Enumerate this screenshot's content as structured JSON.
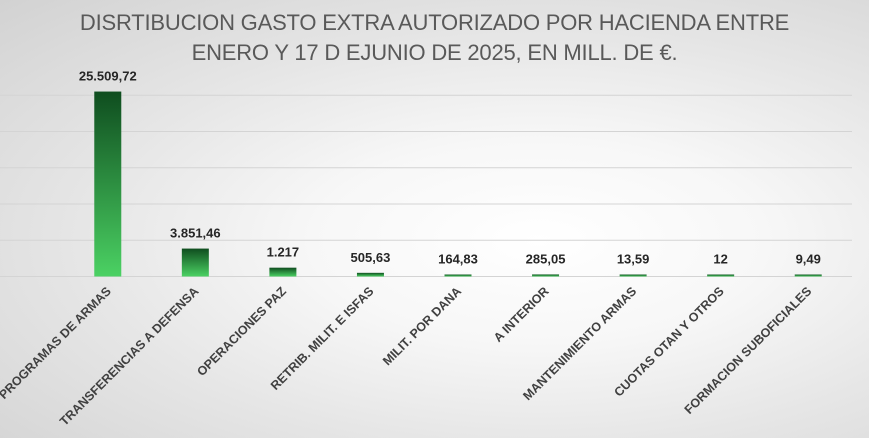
{
  "chart_data": {
    "type": "bar",
    "title": {
      "line1": "DISRTIBUCION GASTO EXTRA AUTORIZADO POR HACIENDA ENTRE",
      "line2": "ENERO Y 17 D EJUNIO DE 2025, EN MILL. DE €."
    },
    "xlabel": "",
    "ylabel": "",
    "ylim": [
      0,
      26000
    ],
    "grid": true,
    "legend": "none",
    "categories": [
      "PROGRAMAS DE ARMAS",
      "TRANSFERENCIAS A DEFENSA",
      "OPERACIONES PAZ",
      "RETRIB. MILIT. E ISFAS",
      "MILIT. POR DANA",
      "A INTERIOR",
      "MANTENIMIENTO ARMAS",
      "CUOTAS OTAN Y OTROS",
      "FORMACION SUBOFICIALES"
    ],
    "values": [
      25509.72,
      3851.46,
      1217,
      505.63,
      164.83,
      285.05,
      13.59,
      12,
      9.49
    ],
    "data_labels": [
      "25.509,72",
      "3.851,46",
      "1.217",
      "505,63",
      "164,83",
      "285,05",
      "13,59",
      "12",
      "9,49"
    ]
  },
  "colors": {
    "bar_dark": "#0f4d1f",
    "bar_light": "#4bd163",
    "gridline": "#d4d4d4",
    "title": "#595959"
  }
}
